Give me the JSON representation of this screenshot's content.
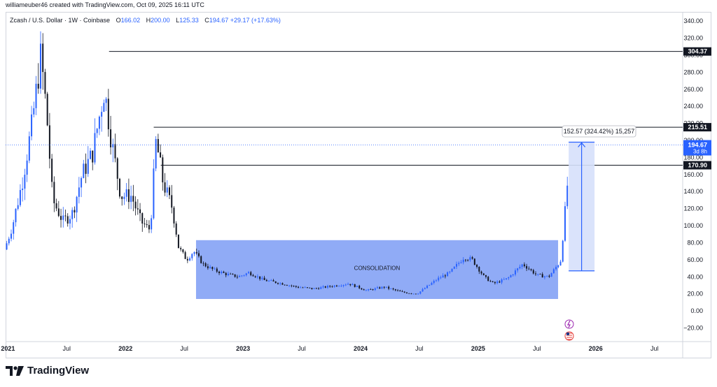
{
  "header": {
    "created_by": "williameuber46 created with TradingView.com, Oct 09, 2025 16:11 UTC"
  },
  "legend": {
    "symbol": "Zcash / U.S. Dollar · 1W · Coinbase",
    "open_label": "O",
    "open": "166.02",
    "high_label": "H",
    "high": "200.00",
    "low_label": "L",
    "low": "125.33",
    "close_label": "C",
    "close": "194.67",
    "change": "+29.17 (+17.63%)"
  },
  "footer": {
    "brand": "TradingView"
  },
  "colors": {
    "up": "#2962ff",
    "down": "#131722",
    "zone": "#7d9cf5",
    "measure": "#d6e0fb",
    "accent": "#2962ff"
  },
  "chart_data": {
    "type": "candlestick",
    "title": "Zcash / U.S. Dollar · 1W · Coinbase",
    "x_tick_labels": [
      "2021",
      "Jul",
      "2022",
      "Jul",
      "2023",
      "Jul",
      "2024",
      "Jul",
      "2025",
      "Jul",
      "2026",
      "Jul"
    ],
    "x_ticks": [
      2021.0,
      2021.5,
      2022.0,
      2022.5,
      2023.0,
      2023.5,
      2024.0,
      2024.5,
      2025.0,
      2025.5,
      2026.0,
      2026.5
    ],
    "xlim": [
      2020.98,
      2026.74
    ],
    "y_tick_labels": [
      "340.00",
      "320.00",
      "300.00",
      "280.00",
      "260.00",
      "240.00",
      "220.00",
      "200.00",
      "180.00",
      "160.00",
      "140.00",
      "120.00",
      "100.00",
      "80.00",
      "60.00",
      "40.00",
      "20.00",
      "0.00",
      "−20.00"
    ],
    "y_ticks": [
      340,
      320,
      300,
      280,
      260,
      240,
      220,
      200,
      180,
      160,
      140,
      120,
      100,
      80,
      60,
      40,
      20,
      0,
      -20
    ],
    "ylim": [
      -36,
      350
    ],
    "key_points": [
      [
        2020.97,
        72
      ],
      [
        2021.03,
        95
      ],
      [
        2021.12,
        150
      ],
      [
        2021.2,
        215
      ],
      [
        2021.28,
        300
      ],
      [
        2021.33,
        230
      ],
      [
        2021.38,
        130
      ],
      [
        2021.47,
        105
      ],
      [
        2021.55,
        115
      ],
      [
        2021.63,
        160
      ],
      [
        2021.72,
        185
      ],
      [
        2021.82,
        260
      ],
      [
        2021.88,
        200
      ],
      [
        2021.96,
        135
      ],
      [
        2022.05,
        135
      ],
      [
        2022.13,
        105
      ],
      [
        2022.21,
        95
      ],
      [
        2022.26,
        200
      ],
      [
        2022.32,
        150
      ],
      [
        2022.4,
        120
      ],
      [
        2022.45,
        75
      ],
      [
        2022.52,
        60
      ],
      [
        2022.58,
        70
      ],
      [
        2022.66,
        55
      ],
      [
        2022.75,
        48
      ],
      [
        2022.86,
        43
      ],
      [
        2022.96,
        40
      ],
      [
        2023.05,
        45
      ],
      [
        2023.18,
        36
      ],
      [
        2023.3,
        33
      ],
      [
        2023.46,
        28
      ],
      [
        2023.6,
        26
      ],
      [
        2023.8,
        30
      ],
      [
        2023.9,
        32
      ],
      [
        2024.05,
        24
      ],
      [
        2024.2,
        28
      ],
      [
        2024.35,
        22
      ],
      [
        2024.48,
        20
      ],
      [
        2024.56,
        28
      ],
      [
        2024.66,
        38
      ],
      [
        2024.76,
        45
      ],
      [
        2024.88,
        63
      ],
      [
        2024.95,
        60
      ],
      [
        2025.05,
        40
      ],
      [
        2025.13,
        32
      ],
      [
        2025.25,
        38
      ],
      [
        2025.38,
        55
      ],
      [
        2025.5,
        42
      ],
      [
        2025.6,
        40
      ],
      [
        2025.7,
        58
      ],
      [
        2025.73,
        100
      ],
      [
        2025.76,
        150
      ],
      [
        2025.77,
        194.67
      ]
    ],
    "horizontal_levels": [
      {
        "value": 304.37,
        "label": "304.37",
        "from_x": 2021.86
      },
      {
        "value": 215.51,
        "label": "215.51",
        "from_x": 2022.24
      },
      {
        "value": 170.9,
        "label": "170.90",
        "from_x": 2022.3
      }
    ],
    "last_price": {
      "value": 194.67,
      "label": "194.67",
      "countdown": "3d 8h"
    },
    "consolidation_zone": {
      "label": "CONSOLIDATION",
      "x_start": 2022.6,
      "x_end": 2025.68,
      "y_low": 14,
      "y_high": 83
    },
    "measure": {
      "label": "152.57 (324.42%) 15,257",
      "x_start": 2025.77,
      "x_end": 2025.99,
      "y_from": 47,
      "y_to": 198
    }
  }
}
